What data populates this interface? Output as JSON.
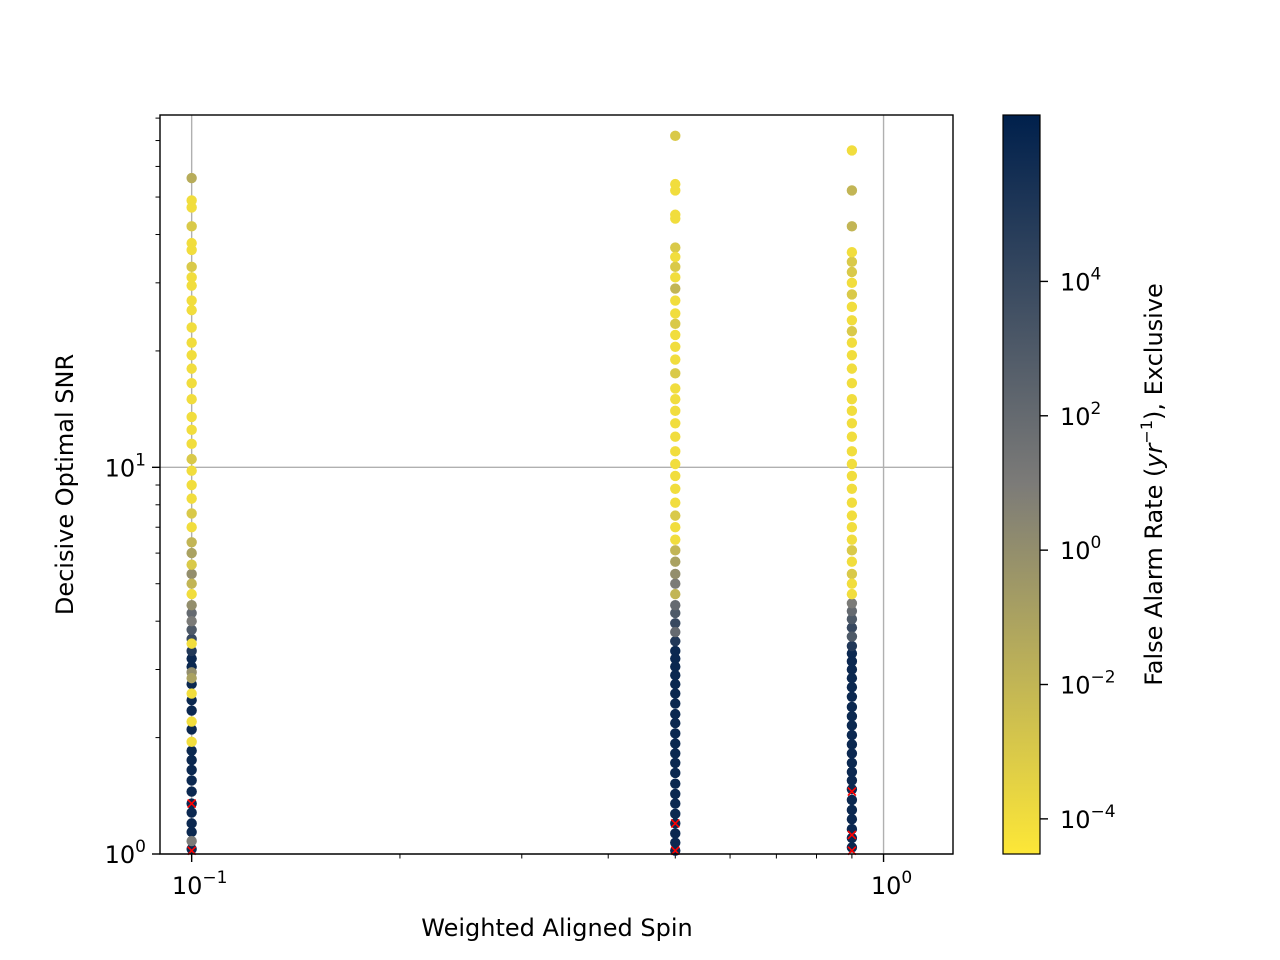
{
  "chart_data": {
    "type": "scatter",
    "title": "",
    "xlabel": "Weighted Aligned Spin",
    "ylabel": "Decisive Optimal SNR",
    "x_scale": "log",
    "y_scale": "log",
    "xlim": [
      0.09,
      1.26
    ],
    "ylim": [
      1.0,
      81.5
    ],
    "grid": true,
    "x_ticks": [
      {
        "value": 0.1,
        "base": "10",
        "exp": "−1"
      },
      {
        "value": 1.0,
        "base": "10",
        "exp": "0"
      }
    ],
    "y_ticks": [
      {
        "value": 1.0,
        "base": "10",
        "exp": "0"
      },
      {
        "value": 10.0,
        "base": "10",
        "exp": "1"
      }
    ],
    "colorbar": {
      "label": "False Alarm Rate (yr⁻¹), Exclusive",
      "label_prefix": "False Alarm Rate (",
      "label_var": "yr",
      "label_sup": "−1",
      "label_suffix": "), Exclusive",
      "scale": "log",
      "range": [
        3e-05,
        3000000
      ],
      "colormap": "cividis (reversed)",
      "color_low": "#fde737",
      "color_mid": "#7c7b78",
      "color_high": "#00204c",
      "ticks": [
        {
          "value": 0.0001,
          "base": "10",
          "exp": "−4"
        },
        {
          "value": 0.01,
          "base": "10",
          "exp": "−2"
        },
        {
          "value": 1,
          "base": "10",
          "exp": "0"
        },
        {
          "value": 100,
          "base": "10",
          "exp": "2"
        },
        {
          "value": 10000,
          "base": "10",
          "exp": "4"
        }
      ]
    },
    "series": [
      {
        "x": 0.1,
        "points": [
          {
            "snr": 56.0,
            "far": 0.03
          },
          {
            "snr": 49.0,
            "far": 0.0001
          },
          {
            "snr": 47.0,
            "far": 0.0001
          },
          {
            "snr": 42.0,
            "far": 0.001
          },
          {
            "snr": 38.0,
            "far": 0.0001
          },
          {
            "snr": 36.5,
            "far": 0.0001
          },
          {
            "snr": 33.0,
            "far": 0.001
          },
          {
            "snr": 31.0,
            "far": 0.0001
          },
          {
            "snr": 29.5,
            "far": 0.0001
          },
          {
            "snr": 27.0,
            "far": 0.0001
          },
          {
            "snr": 25.5,
            "far": 0.0001
          },
          {
            "snr": 23.0,
            "far": 0.0001
          },
          {
            "snr": 21.0,
            "far": 0.0001
          },
          {
            "snr": 19.5,
            "far": 0.0001
          },
          {
            "snr": 18.0,
            "far": 0.0001
          },
          {
            "snr": 16.5,
            "far": 0.0001
          },
          {
            "snr": 15.0,
            "far": 0.0001
          },
          {
            "snr": 13.5,
            "far": 0.0001
          },
          {
            "snr": 12.5,
            "far": 0.0001
          },
          {
            "snr": 11.5,
            "far": 0.0001
          },
          {
            "snr": 10.5,
            "far": 0.001
          },
          {
            "snr": 9.8,
            "far": 0.0001
          },
          {
            "snr": 9.0,
            "far": 0.0001
          },
          {
            "snr": 8.3,
            "far": 0.0001
          },
          {
            "snr": 7.6,
            "far": 0.001
          },
          {
            "snr": 7.0,
            "far": 0.0001
          },
          {
            "snr": 6.4,
            "far": 0.01
          },
          {
            "snr": 6.0,
            "far": 0.1
          },
          {
            "snr": 5.6,
            "far": 0.001
          },
          {
            "snr": 5.3,
            "far": 1
          },
          {
            "snr": 5.0,
            "far": 0.01
          },
          {
            "snr": 4.7,
            "far": 0.0001
          },
          {
            "snr": 4.4,
            "far": 1
          },
          {
            "snr": 4.2,
            "far": 100
          },
          {
            "snr": 4.0,
            "far": 10
          },
          {
            "snr": 3.8,
            "far": 1000
          },
          {
            "snr": 3.6,
            "far": 10000
          },
          {
            "snr": 3.5,
            "far": 0.0001
          },
          {
            "snr": 3.35,
            "far": 100000
          },
          {
            "snr": 3.2,
            "far": 1000000
          },
          {
            "snr": 3.05,
            "far": 1000000
          },
          {
            "snr": 2.95,
            "far": 1
          },
          {
            "snr": 2.85,
            "far": 0.1
          },
          {
            "snr": 2.75,
            "far": 1000000
          },
          {
            "snr": 2.6,
            "far": 0.0001
          },
          {
            "snr": 2.5,
            "far": 1000000
          },
          {
            "snr": 2.35,
            "far": 1000000
          },
          {
            "snr": 2.2,
            "far": 0.0001
          },
          {
            "snr": 2.1,
            "far": 1000000
          },
          {
            "snr": 1.95,
            "far": 0.0001
          },
          {
            "snr": 1.85,
            "far": 1000000
          },
          {
            "snr": 1.75,
            "far": 1000000
          },
          {
            "snr": 1.65,
            "far": 1000000
          },
          {
            "snr": 1.55,
            "far": 1000000
          },
          {
            "snr": 1.45,
            "far": 1000000
          },
          {
            "snr": 1.35,
            "far": 1000000
          },
          {
            "snr": 1.28,
            "far": 1000000
          },
          {
            "snr": 1.2,
            "far": 1000000
          },
          {
            "snr": 1.14,
            "far": 1000000
          },
          {
            "snr": 1.08,
            "far": 10
          },
          {
            "snr": 1.03,
            "far": 1000000
          }
        ]
      },
      {
        "x": 0.5,
        "points": [
          {
            "snr": 72.0,
            "far": 0.001
          },
          {
            "snr": 54.0,
            "far": 0.0001
          },
          {
            "snr": 52.0,
            "far": 0.0001
          },
          {
            "snr": 45.0,
            "far": 0.0001
          },
          {
            "snr": 44.0,
            "far": 0.0001
          },
          {
            "snr": 37.0,
            "far": 0.001
          },
          {
            "snr": 35.0,
            "far": 0.0001
          },
          {
            "snr": 33.0,
            "far": 0.001
          },
          {
            "snr": 31.0,
            "far": 0.0001
          },
          {
            "snr": 29.0,
            "far": 0.01
          },
          {
            "snr": 27.0,
            "far": 0.0001
          },
          {
            "snr": 25.0,
            "far": 0.0001
          },
          {
            "snr": 23.5,
            "far": 0.001
          },
          {
            "snr": 22.0,
            "far": 0.0001
          },
          {
            "snr": 20.5,
            "far": 0.0001
          },
          {
            "snr": 19.0,
            "far": 0.0001
          },
          {
            "snr": 17.5,
            "far": 0.001
          },
          {
            "snr": 16.0,
            "far": 0.0001
          },
          {
            "snr": 15.0,
            "far": 0.0001
          },
          {
            "snr": 14.0,
            "far": 0.0001
          },
          {
            "snr": 13.0,
            "far": 0.0001
          },
          {
            "snr": 12.0,
            "far": 0.0001
          },
          {
            "snr": 11.0,
            "far": 0.0001
          },
          {
            "snr": 10.2,
            "far": 0.0001
          },
          {
            "snr": 9.5,
            "far": 0.0001
          },
          {
            "snr": 8.8,
            "far": 0.0001
          },
          {
            "snr": 8.1,
            "far": 0.0001
          },
          {
            "snr": 7.5,
            "far": 0.001
          },
          {
            "snr": 7.0,
            "far": 0.0001
          },
          {
            "snr": 6.5,
            "far": 0.0001
          },
          {
            "snr": 6.1,
            "far": 0.01
          },
          {
            "snr": 5.7,
            "far": 0.1
          },
          {
            "snr": 5.3,
            "far": 1
          },
          {
            "snr": 5.0,
            "far": 10
          },
          {
            "snr": 4.7,
            "far": 0.01
          },
          {
            "snr": 4.4,
            "far": 100
          },
          {
            "snr": 4.2,
            "far": 1000
          },
          {
            "snr": 3.95,
            "far": 10000
          },
          {
            "snr": 3.75,
            "far": 100
          },
          {
            "snr": 3.55,
            "far": 100000
          },
          {
            "snr": 3.35,
            "far": 1000000
          },
          {
            "snr": 3.2,
            "far": 1000000
          },
          {
            "snr": 3.05,
            "far": 1000000
          },
          {
            "snr": 2.9,
            "far": 1000000
          },
          {
            "snr": 2.75,
            "far": 1000000
          },
          {
            "snr": 2.6,
            "far": 1000000
          },
          {
            "snr": 2.45,
            "far": 1000000
          },
          {
            "snr": 2.3,
            "far": 1000000
          },
          {
            "snr": 2.18,
            "far": 1000000
          },
          {
            "snr": 2.05,
            "far": 1000000
          },
          {
            "snr": 1.93,
            "far": 1000000
          },
          {
            "snr": 1.82,
            "far": 1000000
          },
          {
            "snr": 1.72,
            "far": 1000000
          },
          {
            "snr": 1.62,
            "far": 1000000
          },
          {
            "snr": 1.52,
            "far": 1000000
          },
          {
            "snr": 1.43,
            "far": 1000000
          },
          {
            "snr": 1.35,
            "far": 1000000
          },
          {
            "snr": 1.27,
            "far": 1000000
          },
          {
            "snr": 1.2,
            "far": 1000000
          },
          {
            "snr": 1.13,
            "far": 1000000
          },
          {
            "snr": 1.07,
            "far": 1000000
          },
          {
            "snr": 1.02,
            "far": 1000000
          }
        ]
      },
      {
        "x": 0.9,
        "points": [
          {
            "snr": 66.0,
            "far": 0.0001
          },
          {
            "snr": 52.0,
            "far": 0.01
          },
          {
            "snr": 42.0,
            "far": 0.01
          },
          {
            "snr": 36.0,
            "far": 0.0001
          },
          {
            "snr": 34.0,
            "far": 0.001
          },
          {
            "snr": 32.0,
            "far": 0.001
          },
          {
            "snr": 30.0,
            "far": 0.0001
          },
          {
            "snr": 28.0,
            "far": 0.001
          },
          {
            "snr": 26.0,
            "far": 0.0001
          },
          {
            "snr": 24.0,
            "far": 0.0001
          },
          {
            "snr": 22.5,
            "far": 0.001
          },
          {
            "snr": 21.0,
            "far": 0.0001
          },
          {
            "snr": 19.5,
            "far": 0.0001
          },
          {
            "snr": 18.0,
            "far": 0.0001
          },
          {
            "snr": 16.5,
            "far": 0.0001
          },
          {
            "snr": 15.0,
            "far": 0.0001
          },
          {
            "snr": 14.0,
            "far": 0.0001
          },
          {
            "snr": 13.0,
            "far": 0.0001
          },
          {
            "snr": 12.0,
            "far": 0.0001
          },
          {
            "snr": 11.0,
            "far": 0.0001
          },
          {
            "snr": 10.2,
            "far": 0.0001
          },
          {
            "snr": 9.5,
            "far": 0.0001
          },
          {
            "snr": 8.8,
            "far": 0.0001
          },
          {
            "snr": 8.1,
            "far": 0.0001
          },
          {
            "snr": 7.5,
            "far": 0.0001
          },
          {
            "snr": 7.0,
            "far": 0.0001
          },
          {
            "snr": 6.5,
            "far": 0.0001
          },
          {
            "snr": 6.1,
            "far": 0.001
          },
          {
            "snr": 5.7,
            "far": 0.0001
          },
          {
            "snr": 5.3,
            "far": 0.001
          },
          {
            "snr": 5.0,
            "far": 0.0001
          },
          {
            "snr": 4.7,
            "far": 0.0001
          },
          {
            "snr": 4.45,
            "far": 10
          },
          {
            "snr": 4.25,
            "far": 100
          },
          {
            "snr": 4.05,
            "far": 1000
          },
          {
            "snr": 3.85,
            "far": 10000
          },
          {
            "snr": 3.65,
            "far": 1000
          },
          {
            "snr": 3.45,
            "far": 100000
          },
          {
            "snr": 3.3,
            "far": 1000000
          },
          {
            "snr": 3.15,
            "far": 1000000
          },
          {
            "snr": 3.0,
            "far": 1000000
          },
          {
            "snr": 2.85,
            "far": 1000000
          },
          {
            "snr": 2.7,
            "far": 1000000
          },
          {
            "snr": 2.55,
            "far": 1000000
          },
          {
            "snr": 2.4,
            "far": 1000000
          },
          {
            "snr": 2.27,
            "far": 1000000
          },
          {
            "snr": 2.15,
            "far": 1000000
          },
          {
            "snr": 2.03,
            "far": 1000000
          },
          {
            "snr": 1.92,
            "far": 1000000
          },
          {
            "snr": 1.82,
            "far": 1000000
          },
          {
            "snr": 1.72,
            "far": 1000000
          },
          {
            "snr": 1.63,
            "far": 1000000
          },
          {
            "snr": 1.55,
            "far": 1000000
          },
          {
            "snr": 1.47,
            "far": 1000000
          },
          {
            "snr": 1.38,
            "far": 1000000
          },
          {
            "snr": 1.3,
            "far": 1000000
          },
          {
            "snr": 1.23,
            "far": 1000000
          },
          {
            "snr": 1.16,
            "far": 1000000
          },
          {
            "snr": 1.1,
            "far": 1000000
          },
          {
            "snr": 1.04,
            "far": 1000000
          }
        ]
      }
    ],
    "missed_markers": {
      "color": "#ff0000",
      "symbol": "x",
      "points": [
        {
          "x": 0.1,
          "snr": 1.35
        },
        {
          "x": 0.1,
          "snr": 1.02
        },
        {
          "x": 0.5,
          "snr": 1.2
        },
        {
          "x": 0.5,
          "snr": 1.02
        },
        {
          "x": 0.9,
          "snr": 1.45
        },
        {
          "x": 0.9,
          "snr": 1.12
        },
        {
          "x": 0.9,
          "snr": 1.02
        }
      ]
    }
  }
}
